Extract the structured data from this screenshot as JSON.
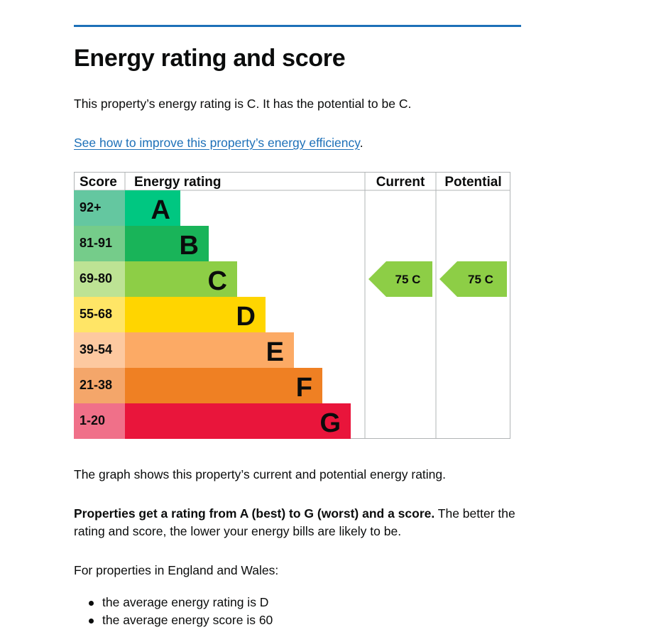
{
  "page": {
    "title": "Energy rating and score",
    "intro": "This property’s energy rating is C. It has the potential to be C.",
    "improve_link": "See how to improve this property’s energy efficiency",
    "improve_link_suffix": ".",
    "graph_caption": "The graph shows this property’s current and potential energy rating.",
    "rating_info_bold": "Properties get a rating from A (best) to G (worst) and a score.",
    "rating_info_rest": " The better the rating and score, the lower your energy bills are likely to be.",
    "averages_intro": "For properties in England and Wales:",
    "averages": [
      "the average energy rating is D",
      "the average energy score is 60"
    ]
  },
  "chart_data": {
    "type": "bar",
    "headers": {
      "score": "Score",
      "rating": "Energy rating",
      "current": "Current",
      "potential": "Potential"
    },
    "bands": [
      {
        "letter": "A",
        "range": "92+",
        "color": "#008054",
        "score_bg": "#64c7a0"
      },
      {
        "letter": "B",
        "range": "81-91",
        "color": "#19b459",
        "score_bg": "#75cc8a"
      },
      {
        "letter": "C",
        "range": "69-80",
        "color": "#8dce46",
        "score_bg": "#bde394"
      },
      {
        "letter": "D",
        "range": "55-68",
        "color": "#ffd500",
        "score_bg": "#ffe566"
      },
      {
        "letter": "E",
        "range": "39-54",
        "color": "#fcaa65",
        "score_bg": "#fdc9a0"
      },
      {
        "letter": "F",
        "range": "21-38",
        "color": "#ef8023",
        "score_bg": "#f4a66a"
      },
      {
        "letter": "G",
        "range": "1-20",
        "color": "#e9153b",
        "score_bg": "#f07089"
      }
    ],
    "band_A_color": "#00c781",
    "current": {
      "score": 75,
      "band": "C",
      "label": "75  C"
    },
    "potential": {
      "score": 75,
      "band": "C",
      "label": "75  C"
    }
  }
}
